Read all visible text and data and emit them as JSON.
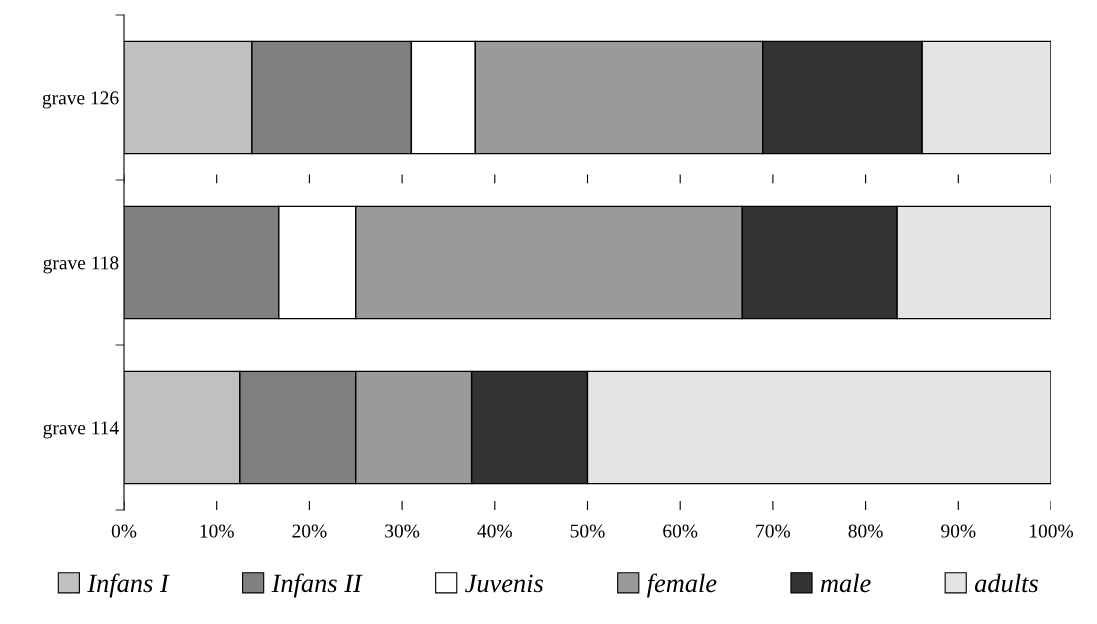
{
  "chart_data": {
    "type": "bar",
    "orientation": "horizontal",
    "stacked": true,
    "categories": [
      "grave 126",
      "grave 118",
      "grave 114"
    ],
    "series": [
      {
        "name": "Infans I",
        "color": "#c0c0c0",
        "values": [
          13.8,
          0,
          12.5
        ]
      },
      {
        "name": "Infans II",
        "color": "#808080",
        "values": [
          17.2,
          16.7,
          12.5
        ]
      },
      {
        "name": "Juvenis",
        "color": "#ffffff",
        "values": [
          6.9,
          8.3,
          0
        ]
      },
      {
        "name": "female",
        "color": "#9a9a9a",
        "values": [
          31.0,
          41.7,
          12.5
        ]
      },
      {
        "name": "male",
        "color": "#333333",
        "values": [
          17.2,
          16.7,
          12.5
        ]
      },
      {
        "name": "adults",
        "color": "#e4e4e4",
        "values": [
          13.9,
          16.6,
          50.0
        ]
      }
    ],
    "xlim": [
      0,
      100
    ],
    "xticks": [
      {
        "value": 0,
        "label": "0%"
      },
      {
        "value": 10,
        "label": "10%"
      },
      {
        "value": 20,
        "label": "20%"
      },
      {
        "value": 30,
        "label": "30%"
      },
      {
        "value": 40,
        "label": "40%"
      },
      {
        "value": 50,
        "label": "50%"
      },
      {
        "value": 60,
        "label": "60%"
      },
      {
        "value": 70,
        "label": "70%"
      },
      {
        "value": 80,
        "label": "80%"
      },
      {
        "value": 90,
        "label": "90%"
      },
      {
        "value": 100,
        "label": "100%"
      }
    ],
    "grid": "x",
    "line_style": "dashed",
    "legend": "bottom"
  }
}
